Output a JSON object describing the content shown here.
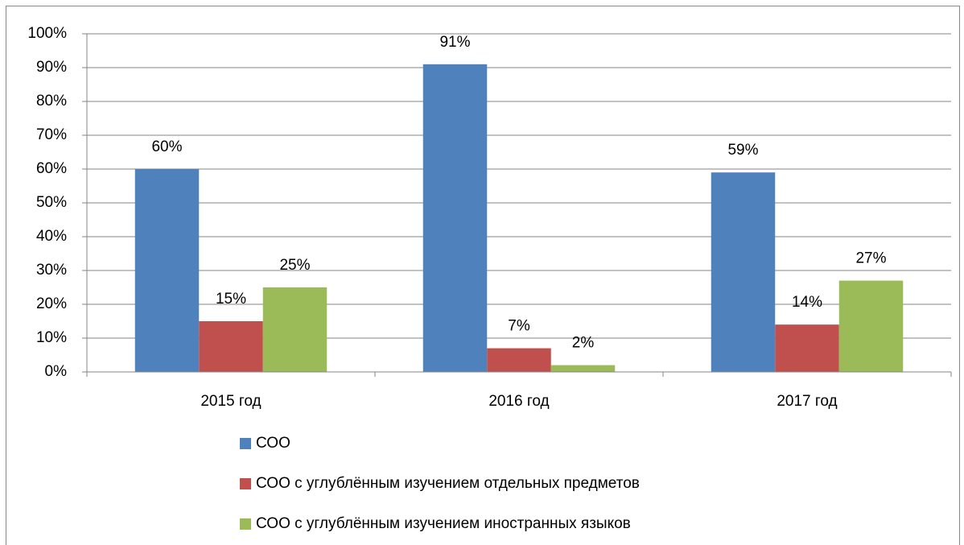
{
  "chart_data": {
    "type": "bar",
    "categories": [
      "2015 год",
      "2016 год",
      "2017 год"
    ],
    "series": [
      {
        "name": "СОО",
        "color": "#4f81bd",
        "values": [
          60,
          91,
          59
        ],
        "value_labels": [
          "60%",
          "91%",
          "59%"
        ]
      },
      {
        "name": "СОО с углублённым изучением отдельных предметов",
        "color": "#c0504d",
        "values": [
          15,
          7,
          14
        ],
        "value_labels": [
          "15%",
          "7%",
          "14%"
        ]
      },
      {
        "name": "СОО с углублённым изучением иностранных языков",
        "color": "#9bbb59",
        "values": [
          25,
          2,
          27
        ],
        "value_labels": [
          "25%",
          "2%",
          "27%"
        ]
      }
    ],
    "ylim": [
      0,
      100
    ],
    "yticks": [
      {
        "value": 0,
        "label": "0%"
      },
      {
        "value": 10,
        "label": "10%"
      },
      {
        "value": 20,
        "label": "20%"
      },
      {
        "value": 30,
        "label": "30%"
      },
      {
        "value": 40,
        "label": "40%"
      },
      {
        "value": 50,
        "label": "50%"
      },
      {
        "value": 60,
        "label": "60%"
      },
      {
        "value": 70,
        "label": "70%"
      },
      {
        "value": 80,
        "label": "80%"
      },
      {
        "value": 90,
        "label": "90%"
      },
      {
        "value": 100,
        "label": "100%"
      }
    ],
    "grid": true,
    "legend": "bottom"
  }
}
